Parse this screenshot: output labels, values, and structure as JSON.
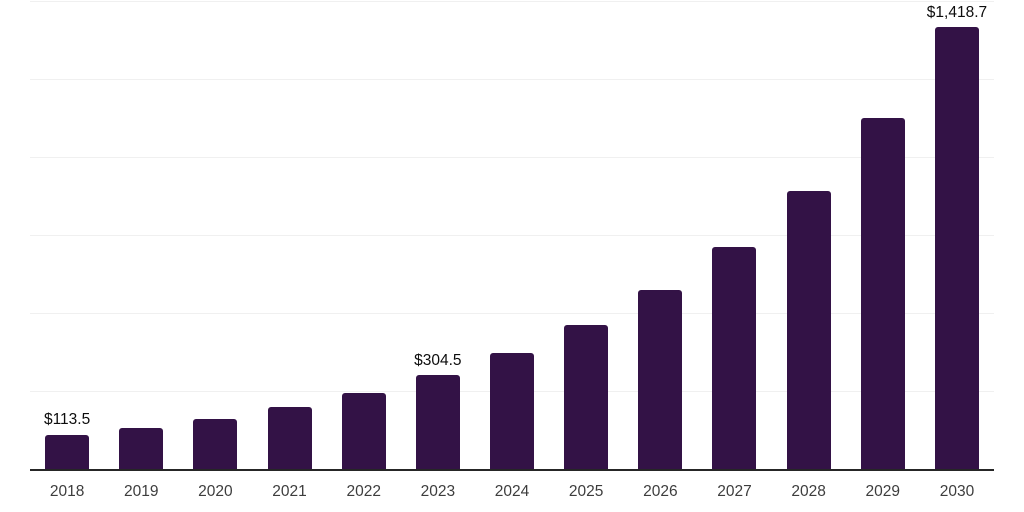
{
  "chart_data": {
    "type": "bar",
    "title": "",
    "xlabel": "",
    "ylabel": "",
    "categories": [
      "2018",
      "2019",
      "2020",
      "2021",
      "2022",
      "2023",
      "2024",
      "2025",
      "2026",
      "2027",
      "2028",
      "2029",
      "2030"
    ],
    "values": [
      113.5,
      135,
      165,
      202,
      247,
      304.5,
      376,
      465,
      577,
      714,
      895,
      1128,
      1418.7
    ],
    "data_labels": [
      "$113.5",
      "",
      "",
      "",
      "",
      "$304.5",
      "",
      "",
      "",
      "",
      "",
      "",
      "$1,418.7"
    ],
    "ylim": [
      0,
      1500
    ],
    "gridline_step": 250,
    "grid": "horizontal-only",
    "legend_position": "none",
    "colors": {
      "bar": "#331246",
      "gridline": "#f0f0f0",
      "axis_line": "#262626",
      "data_label": "#0d0d0d",
      "tick_label": "#3d3d3d",
      "background": "#ffffff"
    }
  }
}
